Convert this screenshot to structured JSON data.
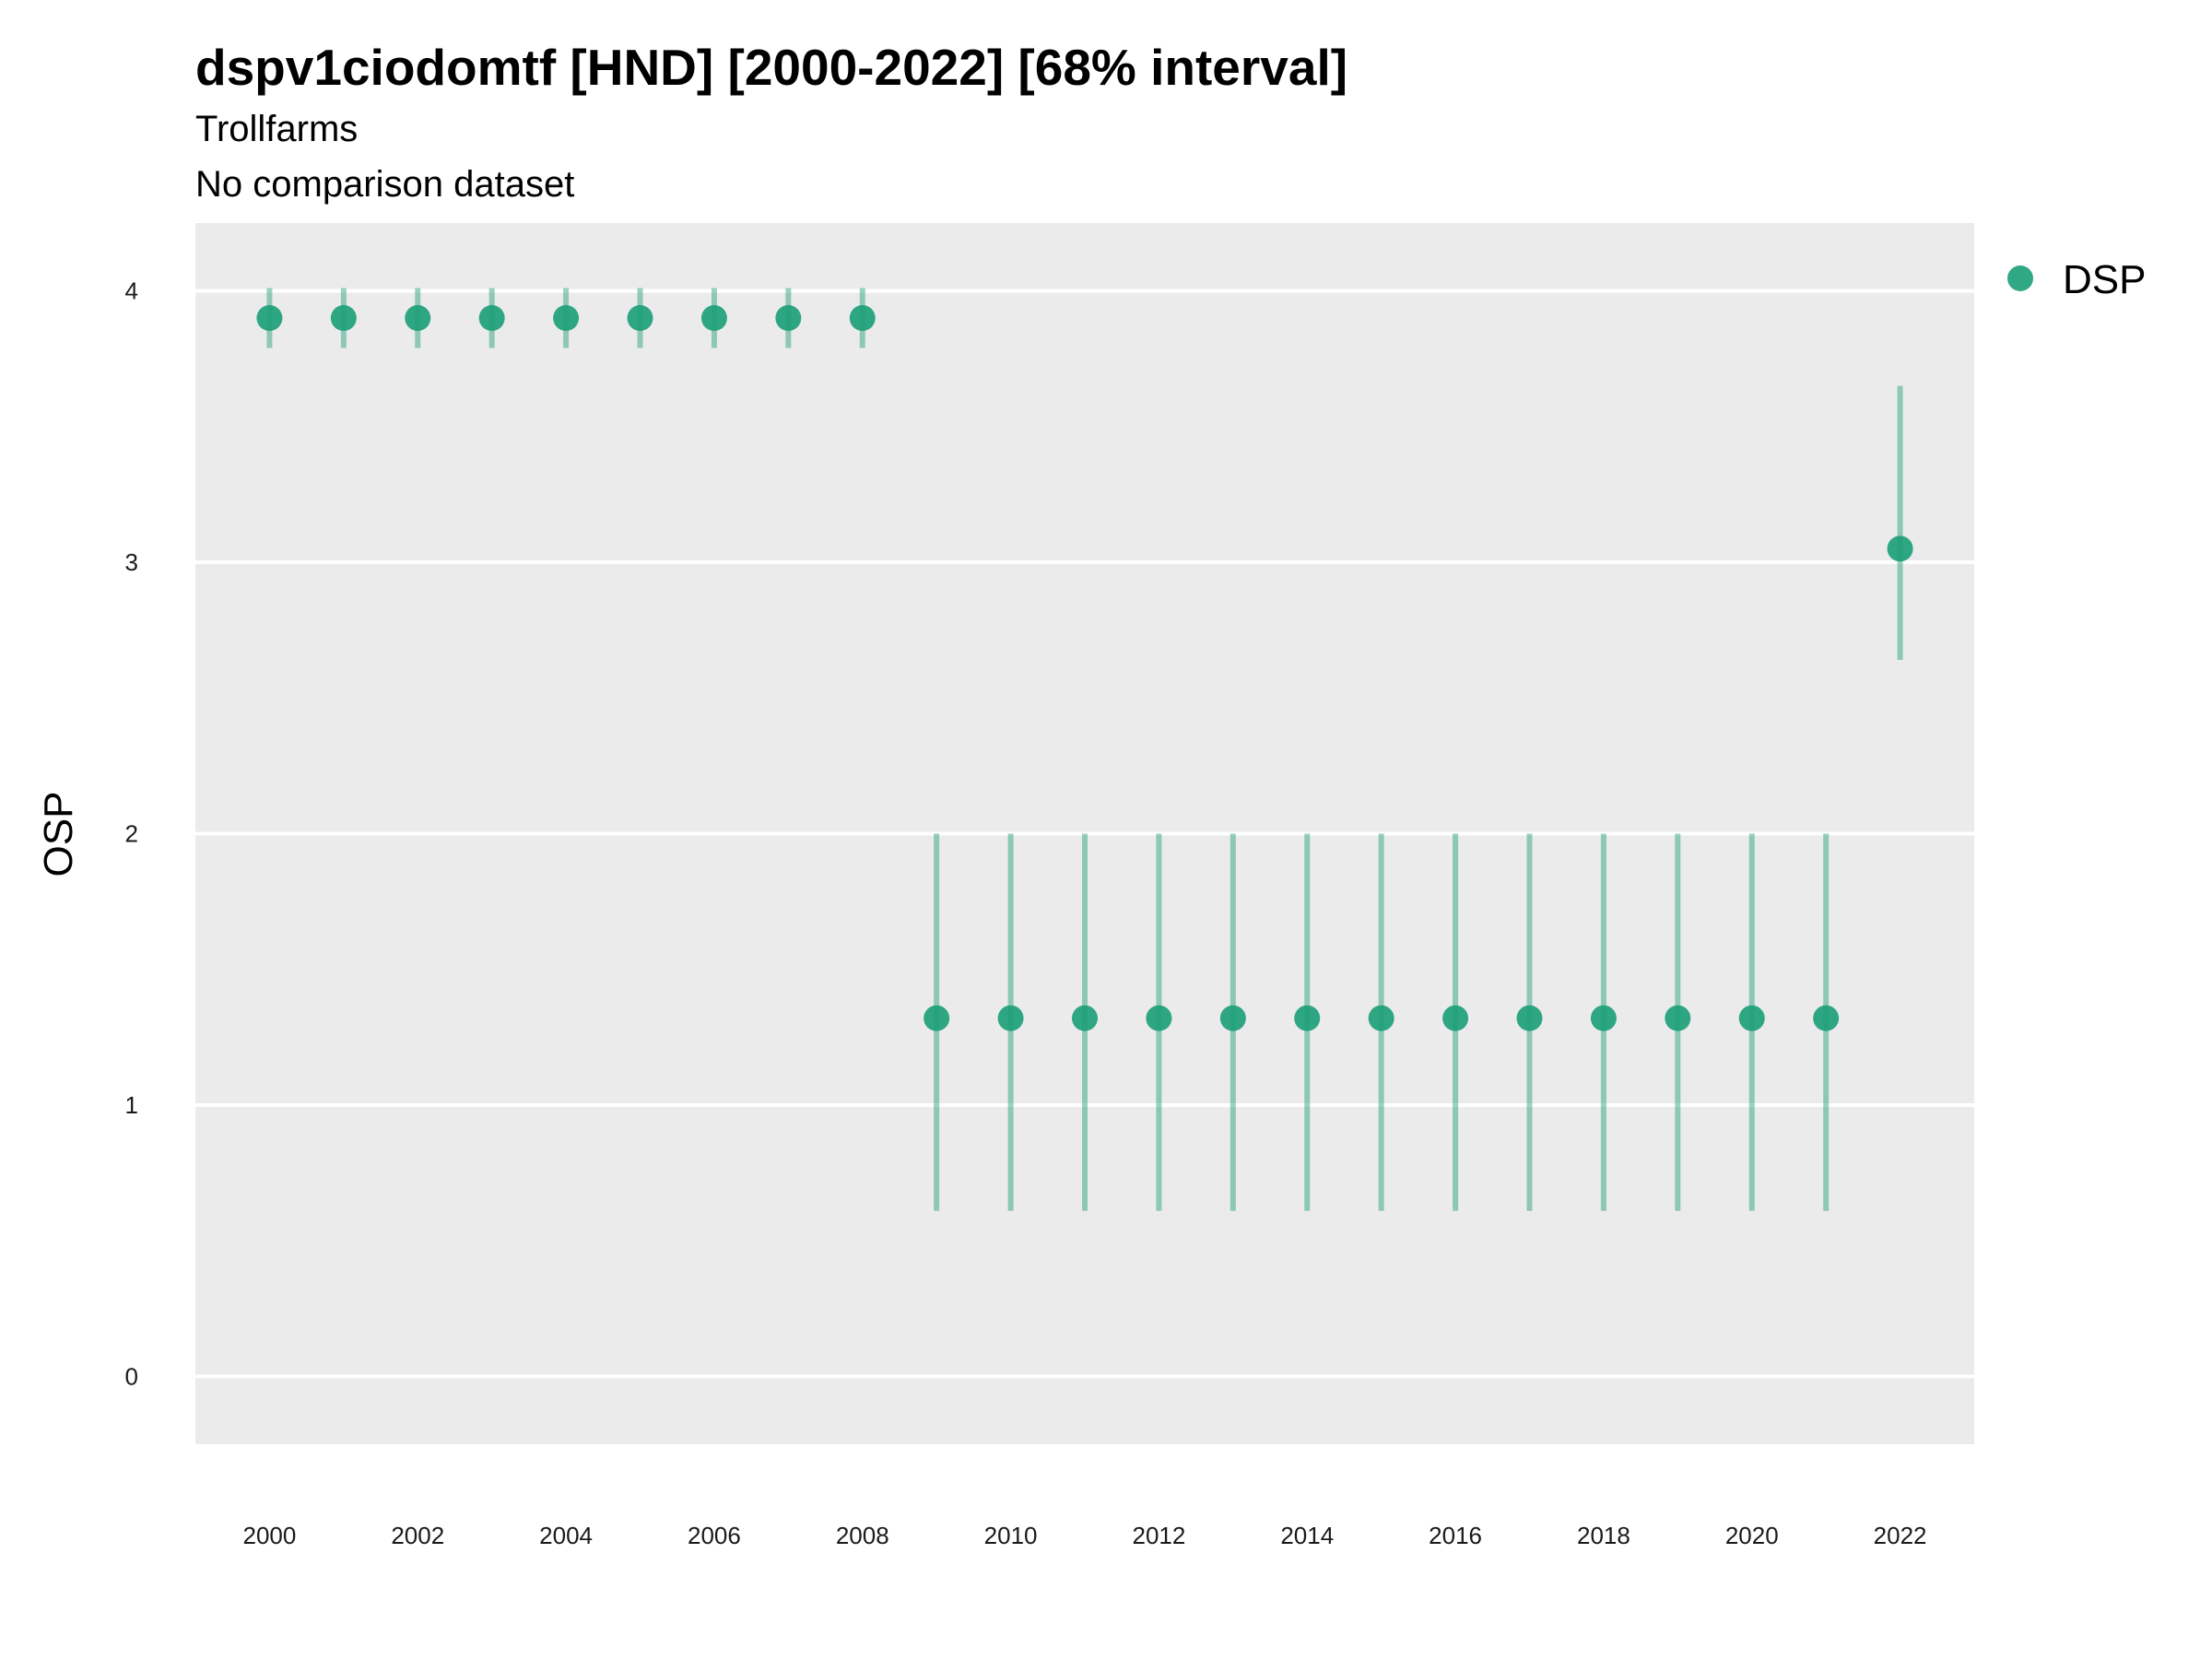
{
  "chart_data": {
    "type": "scatter",
    "title": "dspv1ciodomtf [HND] [2000-2022] [68% interval]",
    "subtitle_lines": [
      "Trollfarms",
      "No comparison dataset"
    ],
    "xlabel": "",
    "ylabel": "OSP",
    "xlim": [
      1999,
      2023
    ],
    "ylim": [
      -0.25,
      4.25
    ],
    "x_ticks": [
      2000,
      2002,
      2004,
      2006,
      2008,
      2010,
      2012,
      2014,
      2016,
      2018,
      2020,
      2022
    ],
    "y_ticks": [
      0,
      1,
      2,
      3,
      4
    ],
    "grid": true,
    "legend_position": "right",
    "series": [
      {
        "name": "DSP",
        "color": "#1b9e77",
        "x": [
          2000,
          2001,
          2002,
          2003,
          2004,
          2005,
          2006,
          2007,
          2008,
          2009,
          2010,
          2011,
          2012,
          2013,
          2014,
          2015,
          2016,
          2017,
          2018,
          2019,
          2020,
          2021,
          2022
        ],
        "y": [
          3.9,
          3.9,
          3.9,
          3.9,
          3.9,
          3.9,
          3.9,
          3.9,
          3.9,
          1.32,
          1.32,
          1.32,
          1.32,
          1.32,
          1.32,
          1.32,
          1.32,
          1.32,
          1.32,
          1.32,
          1.32,
          1.32,
          3.05
        ],
        "lower": [
          3.79,
          3.79,
          3.79,
          3.79,
          3.79,
          3.79,
          3.79,
          3.79,
          3.79,
          0.61,
          0.61,
          0.61,
          0.61,
          0.61,
          0.61,
          0.61,
          0.61,
          0.61,
          0.61,
          0.61,
          0.61,
          0.61,
          2.64
        ],
        "upper": [
          4.01,
          4.01,
          4.01,
          4.01,
          4.01,
          4.01,
          4.01,
          4.01,
          4.01,
          2.0,
          2.0,
          2.0,
          2.0,
          2.0,
          2.0,
          2.0,
          2.0,
          2.0,
          2.0,
          2.0,
          2.0,
          2.0,
          3.65
        ]
      }
    ]
  }
}
